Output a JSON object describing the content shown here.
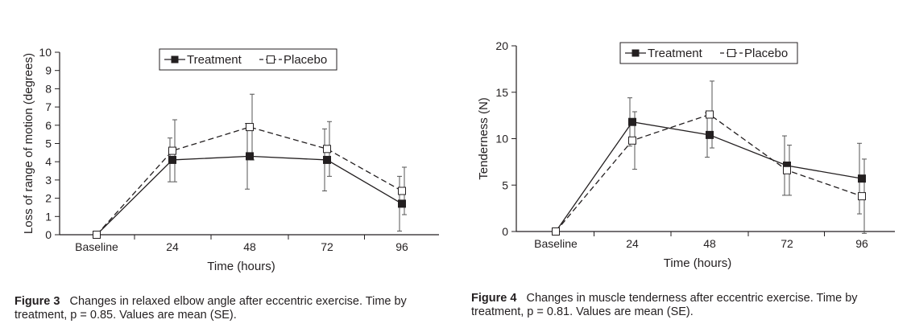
{
  "chart_data": [
    {
      "type": "line",
      "categories": [
        "Baseline",
        "24",
        "48",
        "72",
        "96"
      ],
      "xlabel": "Time (hours)",
      "ylabel": "Loss of range of motion (degrees)",
      "ylim": [
        0,
        10
      ],
      "yticks": [
        0,
        1,
        2,
        3,
        4,
        5,
        6,
        7,
        8,
        9,
        10
      ],
      "legend_position": "top-center",
      "series": [
        {
          "name": "Treatment",
          "marker": "filled-square",
          "line": "solid",
          "values": [
            0,
            4.1,
            4.3,
            4.1,
            1.7
          ],
          "se": [
            0,
            1.2,
            1.8,
            1.7,
            1.5
          ]
        },
        {
          "name": "Placebo",
          "marker": "open-square",
          "line": "dashed",
          "values": [
            0,
            4.6,
            5.9,
            4.7,
            2.4
          ],
          "se": [
            0,
            1.7,
            1.8,
            1.5,
            1.3
          ]
        }
      ],
      "caption_label": "Figure 3",
      "caption_text": "Changes in relaxed elbow angle after eccentric exercise. Time by treatment, p = 0.85. Values are mean (SE)."
    },
    {
      "type": "line",
      "categories": [
        "Baseline",
        "24",
        "48",
        "72",
        "96"
      ],
      "xlabel": "Time (hours)",
      "ylabel": "Tenderness (N)",
      "ylim": [
        0,
        20
      ],
      "yticks": [
        0,
        5,
        10,
        15,
        20
      ],
      "legend_position": "top-center",
      "series": [
        {
          "name": "Treatment",
          "marker": "filled-square",
          "line": "solid",
          "values": [
            0,
            11.8,
            10.4,
            7.1,
            5.7
          ],
          "se": [
            0,
            2.6,
            2.4,
            3.2,
            3.8
          ]
        },
        {
          "name": "Placebo",
          "marker": "open-square",
          "line": "dashed",
          "values": [
            0,
            9.8,
            12.6,
            6.6,
            3.8
          ],
          "se": [
            0,
            3.1,
            3.6,
            2.7,
            4.0
          ]
        }
      ],
      "caption_label": "Figure 4",
      "caption_text": "Changes in muscle tenderness after eccentric exercise. Time by treatment, p = 0.81. Values are mean (SE)."
    }
  ]
}
